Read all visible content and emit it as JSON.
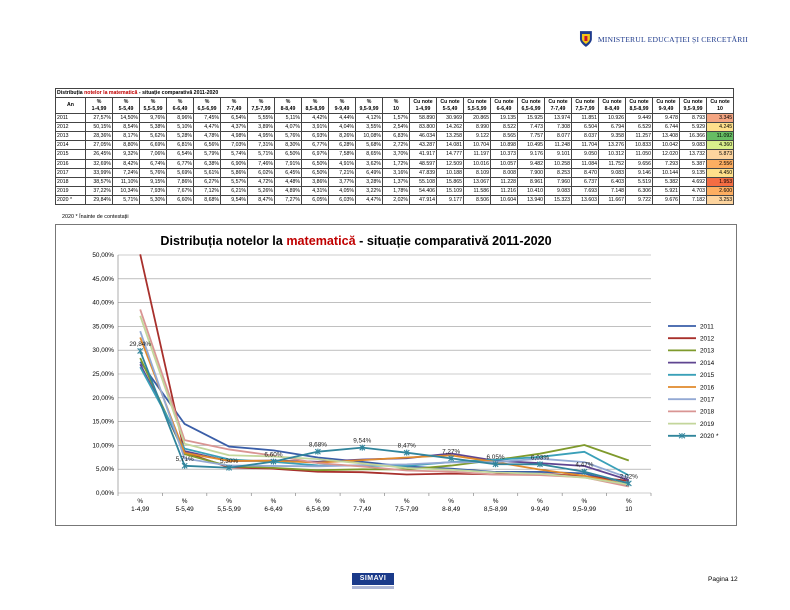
{
  "header": {
    "ministry": "MINISTERUL EDUCAȚIEI ȘI CERCETĂRII"
  },
  "table": {
    "caption_prefix": "Distribuția",
    "caption_subject": "notelor la matematică",
    "caption_suffix": "- situație comparativă 2011-2020",
    "year_header": "An",
    "pct_headers": [
      [
        "%",
        "1-4,99"
      ],
      [
        "%",
        "5-5,49"
      ],
      [
        "%",
        "5,5-5,99"
      ],
      [
        "%",
        "6-6,49"
      ],
      [
        "%",
        "6,5-6,99"
      ],
      [
        "%",
        "7-7,49"
      ],
      [
        "%",
        "7,5-7,99"
      ],
      [
        "%",
        "8-8,49"
      ],
      [
        "%",
        "8,5-8,99"
      ],
      [
        "%",
        "9-9,49"
      ],
      [
        "%",
        "9,5-9,99"
      ],
      [
        "%",
        "10"
      ]
    ],
    "count_headers": [
      [
        "Cu note",
        "1-4,99"
      ],
      [
        "Cu note",
        "5-5,49"
      ],
      [
        "Cu note",
        "5,5-5,99"
      ],
      [
        "Cu note",
        "6-6,49"
      ],
      [
        "Cu note",
        "6,5-6,99"
      ],
      [
        "Cu note",
        "7-7,49"
      ],
      [
        "Cu note",
        "7,5-7,99"
      ],
      [
        "Cu note",
        "8-8,49"
      ],
      [
        "Cu note",
        "8,5-8,99"
      ],
      [
        "Cu note",
        "9-9,49"
      ],
      [
        "Cu note",
        "9,5-9,99"
      ],
      [
        "Cu note",
        "10"
      ]
    ],
    "rows": [
      {
        "year": "2011",
        "pct": [
          "27,57%",
          "14,50%",
          "9,76%",
          "8,96%",
          "7,45%",
          "6,54%",
          "5,55%",
          "5,11%",
          "4,42%",
          "4,44%",
          "4,12%",
          "1,57%"
        ],
        "counts": [
          "58.890",
          "30.969",
          "20.865",
          "19.135",
          "15.925",
          "13.974",
          "11.851",
          "10.926",
          "9.449",
          "9.478",
          "8.793",
          "3.345"
        ],
        "last_color": "#f4a582"
      },
      {
        "year": "2012",
        "pct": [
          "50,15%",
          "8,54%",
          "5,38%",
          "5,10%",
          "4,47%",
          "4,37%",
          "3,89%",
          "4,07%",
          "3,91%",
          "4,04%",
          "3,55%",
          "2,54%"
        ],
        "counts": [
          "83.800",
          "14.262",
          "8.990",
          "8.522",
          "7.473",
          "7.308",
          "6.504",
          "6.794",
          "6.529",
          "6.744",
          "5.929",
          "4.245"
        ],
        "last_color": "#fee08b"
      },
      {
        "year": "2013",
        "pct": [
          "28,36%",
          "8,17%",
          "5,62%",
          "5,28%",
          "4,78%",
          "4,98%",
          "4,95%",
          "5,76%",
          "6,93%",
          "8,26%",
          "10,08%",
          "6,83%"
        ],
        "counts": [
          "46.034",
          "13.258",
          "9.122",
          "8.565",
          "7.757",
          "8.077",
          "8.037",
          "9.358",
          "11.257",
          "13.408",
          "16.366",
          "11.092"
        ],
        "last_color": "#66bd63"
      },
      {
        "year": "2014",
        "pct": [
          "27,05%",
          "8,80%",
          "6,69%",
          "6,81%",
          "6,56%",
          "7,03%",
          "7,31%",
          "8,30%",
          "6,77%",
          "6,28%",
          "5,68%",
          "2,72%"
        ],
        "counts": [
          "43.287",
          "14.081",
          "10.704",
          "10.898",
          "10.495",
          "11.248",
          "11.704",
          "13.276",
          "10.833",
          "10.042",
          "9.083",
          "4.360"
        ],
        "last_color": "#d9ef8b"
      },
      {
        "year": "2015",
        "pct": [
          "26,45%",
          "9,32%",
          "7,06%",
          "6,54%",
          "5,79%",
          "5,74%",
          "5,71%",
          "6,50%",
          "6,97%",
          "7,58%",
          "8,65%",
          "3,70%"
        ],
        "counts": [
          "41.917",
          "14.777",
          "11.197",
          "10.373",
          "9.176",
          "9.101",
          "9.050",
          "10.312",
          "11.050",
          "12.020",
          "13.732",
          "5.873"
        ],
        "last_color": "#fdd49e"
      },
      {
        "year": "2016",
        "pct": [
          "32,69%",
          "8,42%",
          "6,74%",
          "6,77%",
          "6,38%",
          "6,90%",
          "7,46%",
          "7,91%",
          "6,50%",
          "4,91%",
          "3,62%",
          "1,72%"
        ],
        "counts": [
          "48.597",
          "12.509",
          "10.016",
          "10.057",
          "9.482",
          "10.258",
          "11.084",
          "11.752",
          "9.656",
          "7.293",
          "5.387",
          "2.556"
        ],
        "last_color": "#fdae61"
      },
      {
        "year": "2017",
        "pct": [
          "33,99%",
          "7,24%",
          "5,76%",
          "5,69%",
          "5,61%",
          "5,86%",
          "6,02%",
          "6,45%",
          "6,50%",
          "7,21%",
          "6,49%",
          "3,16%"
        ],
        "counts": [
          "47.839",
          "10.188",
          "8.109",
          "8.008",
          "7.900",
          "8.253",
          "8.470",
          "9.083",
          "9.146",
          "10.144",
          "9.135",
          "4.450"
        ],
        "last_color": "#fee08b"
      },
      {
        "year": "2018",
        "pct": [
          "38,57%",
          "11,10%",
          "9,15%",
          "7,86%",
          "6,27%",
          "5,57%",
          "4,72%",
          "4,48%",
          "3,86%",
          "3,77%",
          "3,28%",
          "1,37%"
        ],
        "counts": [
          "55.108",
          "15.865",
          "13.067",
          "11.228",
          "8.961",
          "7.960",
          "6.737",
          "6.403",
          "5.519",
          "5.382",
          "4.692",
          "1.953"
        ],
        "last_color": "#f46d43"
      },
      {
        "year": "2019",
        "pct": [
          "37,22%",
          "10,34%",
          "7,93%",
          "7,67%",
          "7,12%",
          "6,21%",
          "5,26%",
          "4,89%",
          "4,31%",
          "4,05%",
          "3,22%",
          "1,78%"
        ],
        "counts": [
          "54.406",
          "15.109",
          "11.586",
          "11.216",
          "10.410",
          "9.083",
          "7.693",
          "7.148",
          "6.306",
          "5.921",
          "4.703",
          "2.600"
        ],
        "last_color": "#fdae61"
      },
      {
        "year": "2020 *",
        "pct": [
          "29,84%",
          "5,71%",
          "5,30%",
          "6,60%",
          "8,68%",
          "9,54%",
          "8,47%",
          "7,27%",
          "6,05%",
          "6,03%",
          "4,47%",
          "2,02%"
        ],
        "counts": [
          "47.914",
          "9.177",
          "8.506",
          "10.604",
          "13.940",
          "15.323",
          "13.603",
          "11.667",
          "9.722",
          "9.676",
          "7.182",
          "3.253"
        ],
        "last_color": "#fdd49e"
      }
    ],
    "footnote": "2020 *   Înainte de contestații"
  },
  "chart_data": {
    "type": "line",
    "title_prefix": "Distribuția notelor la",
    "title_subject": "matematică",
    "title_suffix": "- situație comparativă 2011-2020",
    "categories": [
      [
        "%",
        "1-4,99"
      ],
      [
        "%",
        "5-5,49"
      ],
      [
        "%",
        "5,5-5,99"
      ],
      [
        "%",
        "6-6,49"
      ],
      [
        "%",
        "6,5-6,99"
      ],
      [
        "%",
        "7-7,49"
      ],
      [
        "%",
        "7,5-7,99"
      ],
      [
        "%",
        "8-8,49"
      ],
      [
        "%",
        "8,5-8,99"
      ],
      [
        "%",
        "9-9,49"
      ],
      [
        "%",
        "9,5-9,99"
      ],
      [
        "%",
        "10"
      ]
    ],
    "ylim": [
      0,
      50
    ],
    "yticks": [
      "0,00%",
      "5,00%",
      "10,00%",
      "15,00%",
      "20,00%",
      "25,00%",
      "30,00%",
      "35,00%",
      "40,00%",
      "45,00%",
      "50,00%"
    ],
    "grid": true,
    "legend": "right",
    "series": [
      {
        "name": "2011",
        "color": "#3a5ea8",
        "values": [
          27.57,
          14.5,
          9.76,
          8.96,
          7.45,
          6.54,
          5.55,
          5.11,
          4.42,
          4.44,
          4.12,
          1.57
        ]
      },
      {
        "name": "2012",
        "color": "#a8302c",
        "values": [
          50.15,
          8.54,
          5.38,
          5.1,
          4.47,
          4.37,
          3.89,
          4.07,
          3.91,
          4.04,
          3.55,
          2.54
        ]
      },
      {
        "name": "2013",
        "color": "#7f9a2c",
        "values": [
          28.36,
          8.17,
          5.62,
          5.28,
          4.78,
          4.98,
          4.95,
          5.76,
          6.93,
          8.26,
          10.08,
          6.83
        ]
      },
      {
        "name": "2014",
        "color": "#5f4590",
        "values": [
          27.05,
          8.8,
          6.69,
          6.81,
          6.56,
          7.03,
          7.31,
          8.3,
          6.77,
          6.28,
          5.68,
          2.72
        ]
      },
      {
        "name": "2015",
        "color": "#3aa0b8",
        "values": [
          26.45,
          9.32,
          7.06,
          6.54,
          5.79,
          5.74,
          5.71,
          6.5,
          6.97,
          7.58,
          8.65,
          3.7
        ]
      },
      {
        "name": "2016",
        "color": "#e08a2c",
        "values": [
          32.69,
          8.42,
          6.74,
          6.77,
          6.38,
          6.9,
          7.46,
          7.91,
          6.5,
          4.91,
          3.62,
          1.72
        ]
      },
      {
        "name": "2017",
        "color": "#93a9d4",
        "values": [
          33.99,
          7.24,
          5.76,
          5.69,
          5.61,
          5.86,
          6.02,
          6.45,
          6.5,
          7.21,
          6.49,
          3.16
        ]
      },
      {
        "name": "2018",
        "color": "#d99593",
        "values": [
          38.57,
          11.1,
          9.15,
          7.86,
          6.27,
          5.57,
          4.72,
          4.48,
          3.86,
          3.77,
          3.28,
          1.37
        ]
      },
      {
        "name": "2019",
        "color": "#c3d69b",
        "values": [
          37.22,
          10.34,
          7.93,
          7.67,
          7.12,
          6.21,
          5.26,
          4.89,
          4.31,
          4.05,
          3.22,
          1.78
        ]
      },
      {
        "name": "2020 *",
        "color": "#31859c",
        "values": [
          29.84,
          5.71,
          5.3,
          6.6,
          8.68,
          9.54,
          8.47,
          7.27,
          6.05,
          6.03,
          4.47,
          2.02
        ],
        "labels": [
          "29,84%",
          "5,71%",
          "5,30%",
          "6,60%",
          "8,68%",
          "9,54%",
          "8,47%",
          "7,27%",
          "6,05%",
          "6,03%",
          "4,47%",
          "2,02%"
        ]
      }
    ]
  },
  "footer": {
    "brand": "SIMAVI",
    "page": "Pagina 12"
  }
}
